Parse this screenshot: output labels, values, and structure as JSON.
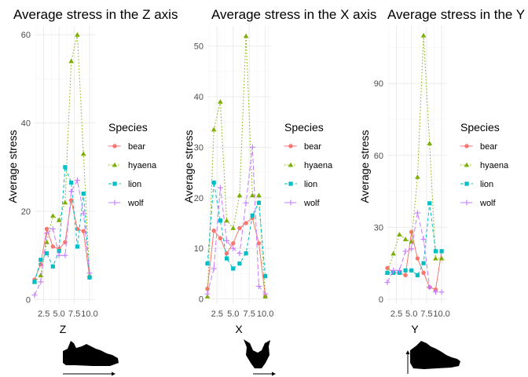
{
  "page_title": "",
  "colors": {
    "bear": "#F8766D",
    "hyaena": "#7CAE00",
    "lion": "#00BFC4",
    "wolf": "#C77CFF",
    "grid_major": "#EBEBEB",
    "grid_minor": "#F5F5F5",
    "tick_text": "#4D4D4D",
    "text": "#000000"
  },
  "chart_data": [
    {
      "type": "line",
      "title": "Average stress in the Z axis",
      "xlabel": "Z",
      "ylabel": "Average stress",
      "xlim": [
        1,
        10.9
      ],
      "ylim": [
        -1,
        62
      ],
      "xticks": [
        2.5,
        5.0,
        7.5,
        10.0
      ],
      "xtick_labels": [
        "2.5",
        "5.0",
        "7.5",
        "10.0"
      ],
      "yticks": [
        0,
        20,
        40,
        60
      ],
      "ytick_labels": [
        "0",
        "20",
        "40",
        "60"
      ],
      "legend_title": "Species",
      "legend_position": "right",
      "grid": true,
      "silhouette": "lateral-jaw",
      "x": [
        1,
        2,
        3,
        4,
        5,
        6,
        7,
        8,
        9,
        10
      ],
      "series": [
        {
          "name": "bear",
          "marker": "circle",
          "dash": "solid",
          "values": [
            4.5,
            8.0,
            16.0,
            12.0,
            11.5,
            13.0,
            22.5,
            16.0,
            15.5,
            5.0
          ]
        },
        {
          "name": "hyaena",
          "marker": "triangle",
          "dash": "dot",
          "values": [
            4.0,
            5.5,
            13.0,
            19.0,
            18.0,
            22.0,
            54.0,
            60.0,
            33.0,
            5.5
          ]
        },
        {
          "name": "lion",
          "marker": "square",
          "dash": "dash",
          "values": [
            4.0,
            9.0,
            10.5,
            7.5,
            11.0,
            30.0,
            26.5,
            12.0,
            24.0,
            5.0
          ]
        },
        {
          "name": "wolf",
          "marker": "plus",
          "dash": "longdash",
          "values": [
            1.0,
            4.0,
            15.0,
            16.0,
            10.0,
            10.0,
            24.5,
            27.0,
            19.5,
            6.0
          ]
        }
      ]
    },
    {
      "type": "line",
      "title": "Average stress in the X axis",
      "xlabel": "X",
      "ylabel": "Average stress",
      "xlim": [
        1,
        10.9
      ],
      "ylim": [
        -1,
        54
      ],
      "xticks": [
        2.5,
        5.0,
        7.5,
        10.0
      ],
      "xtick_labels": [
        "2.5",
        "5.0",
        "7.5",
        "10.0"
      ],
      "yticks": [
        0,
        10,
        20,
        30,
        40,
        50
      ],
      "ytick_labels": [
        "0",
        "10",
        "20",
        "30",
        "40",
        "50"
      ],
      "legend_title": "Species",
      "legend_position": "right",
      "grid": true,
      "silhouette": "front-skull",
      "x": [
        1,
        2,
        3,
        4,
        5,
        6,
        7,
        8,
        9,
        10
      ],
      "series": [
        {
          "name": "bear",
          "marker": "circle",
          "dash": "solid",
          "values": [
            2.0,
            13.5,
            12.0,
            9.0,
            11.0,
            14.0,
            15.0,
            16.0,
            11.0,
            0.5
          ]
        },
        {
          "name": "hyaena",
          "marker": "triangle",
          "dash": "dot",
          "values": [
            0.5,
            33.5,
            39.0,
            15.5,
            14.0,
            20.5,
            52.0,
            20.5,
            20.5,
            0.5
          ]
        },
        {
          "name": "lion",
          "marker": "square",
          "dash": "dash",
          "values": [
            7.0,
            23.0,
            15.5,
            8.0,
            6.0,
            7.0,
            9.0,
            16.5,
            19.0,
            4.5
          ]
        },
        {
          "name": "wolf",
          "marker": "plus",
          "dash": "longdash",
          "values": [
            1.0,
            6.0,
            22.0,
            11.5,
            10.0,
            9.0,
            19.0,
            30.0,
            2.5,
            1.0
          ]
        }
      ]
    },
    {
      "type": "line",
      "title": "Average stress in the Y axis",
      "xlabel": "Y",
      "ylabel": "Average stress",
      "xlim": [
        1,
        10.9
      ],
      "ylim": [
        -2,
        114
      ],
      "xticks": [
        2.5,
        5.0,
        7.5,
        10.0
      ],
      "xtick_labels": [
        "2.5",
        "5.0",
        "7.5",
        "10.0"
      ],
      "yticks": [
        0,
        30,
        60,
        90
      ],
      "ytick_labels": [
        "0",
        "30",
        "60",
        "90"
      ],
      "legend_title": "Species",
      "legend_position": "right",
      "grid": true,
      "silhouette": "lateral-skull-vertical",
      "x": [
        1,
        2,
        3,
        4,
        5,
        6,
        7,
        8,
        9,
        10
      ],
      "series": [
        {
          "name": "bear",
          "marker": "circle",
          "dash": "solid",
          "values": [
            13.0,
            11.0,
            11.0,
            10.0,
            28.0,
            17.0,
            11.0,
            5.0,
            4.0,
            20.0
          ]
        },
        {
          "name": "hyaena",
          "marker": "triangle",
          "dash": "dot",
          "values": [
            11.0,
            19.0,
            27.0,
            25.0,
            24.0,
            51.0,
            110.0,
            65.0,
            17.0,
            17.0
          ]
        },
        {
          "name": "lion",
          "marker": "square",
          "dash": "dash",
          "values": [
            11.0,
            11.0,
            11.0,
            12.0,
            12.0,
            10.0,
            15.0,
            40.0,
            20.0,
            20.0
          ]
        },
        {
          "name": "wolf",
          "marker": "plus",
          "dash": "longdash",
          "values": [
            7.0,
            12.0,
            12.0,
            20.0,
            21.0,
            36.0,
            25.0,
            5.0,
            3.0,
            3.0
          ]
        }
      ]
    }
  ]
}
